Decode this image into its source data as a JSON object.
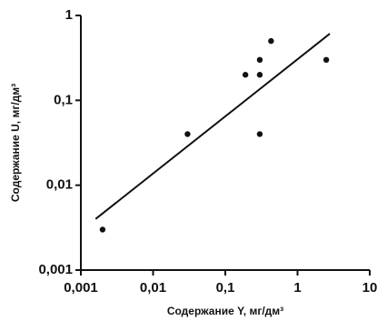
{
  "chart_data": {
    "type": "scatter",
    "x_label": "Содержание Y, мг/дм³",
    "y_label": "Содержание U, мг/дм³",
    "x": [
      0.002,
      0.03,
      0.19,
      0.3,
      0.3,
      0.43,
      0.3,
      2.5
    ],
    "values": [
      0.003,
      0.04,
      0.2,
      0.3,
      0.2,
      0.5,
      0.04,
      0.3
    ],
    "color": "#111111",
    "trend_line": {
      "x": [
        0.0016,
        2.8
      ],
      "y": [
        0.004,
        0.61
      ]
    },
    "xscale": "log",
    "yscale": "log",
    "xlim": [
      0.001,
      10
    ],
    "ylim": [
      0.001,
      1
    ],
    "xticks": [
      {
        "value": 0.001,
        "label": "0,001"
      },
      {
        "value": 0.01,
        "label": "0,01"
      },
      {
        "value": 0.1,
        "label": "0,1"
      },
      1,
      10
    ],
    "yticks": [
      {
        "value": 0.001,
        "label": "0,001"
      },
      {
        "value": 0.01,
        "label": "0,01"
      },
      {
        "value": 0.1,
        "label": "0,1"
      },
      1
    ]
  }
}
